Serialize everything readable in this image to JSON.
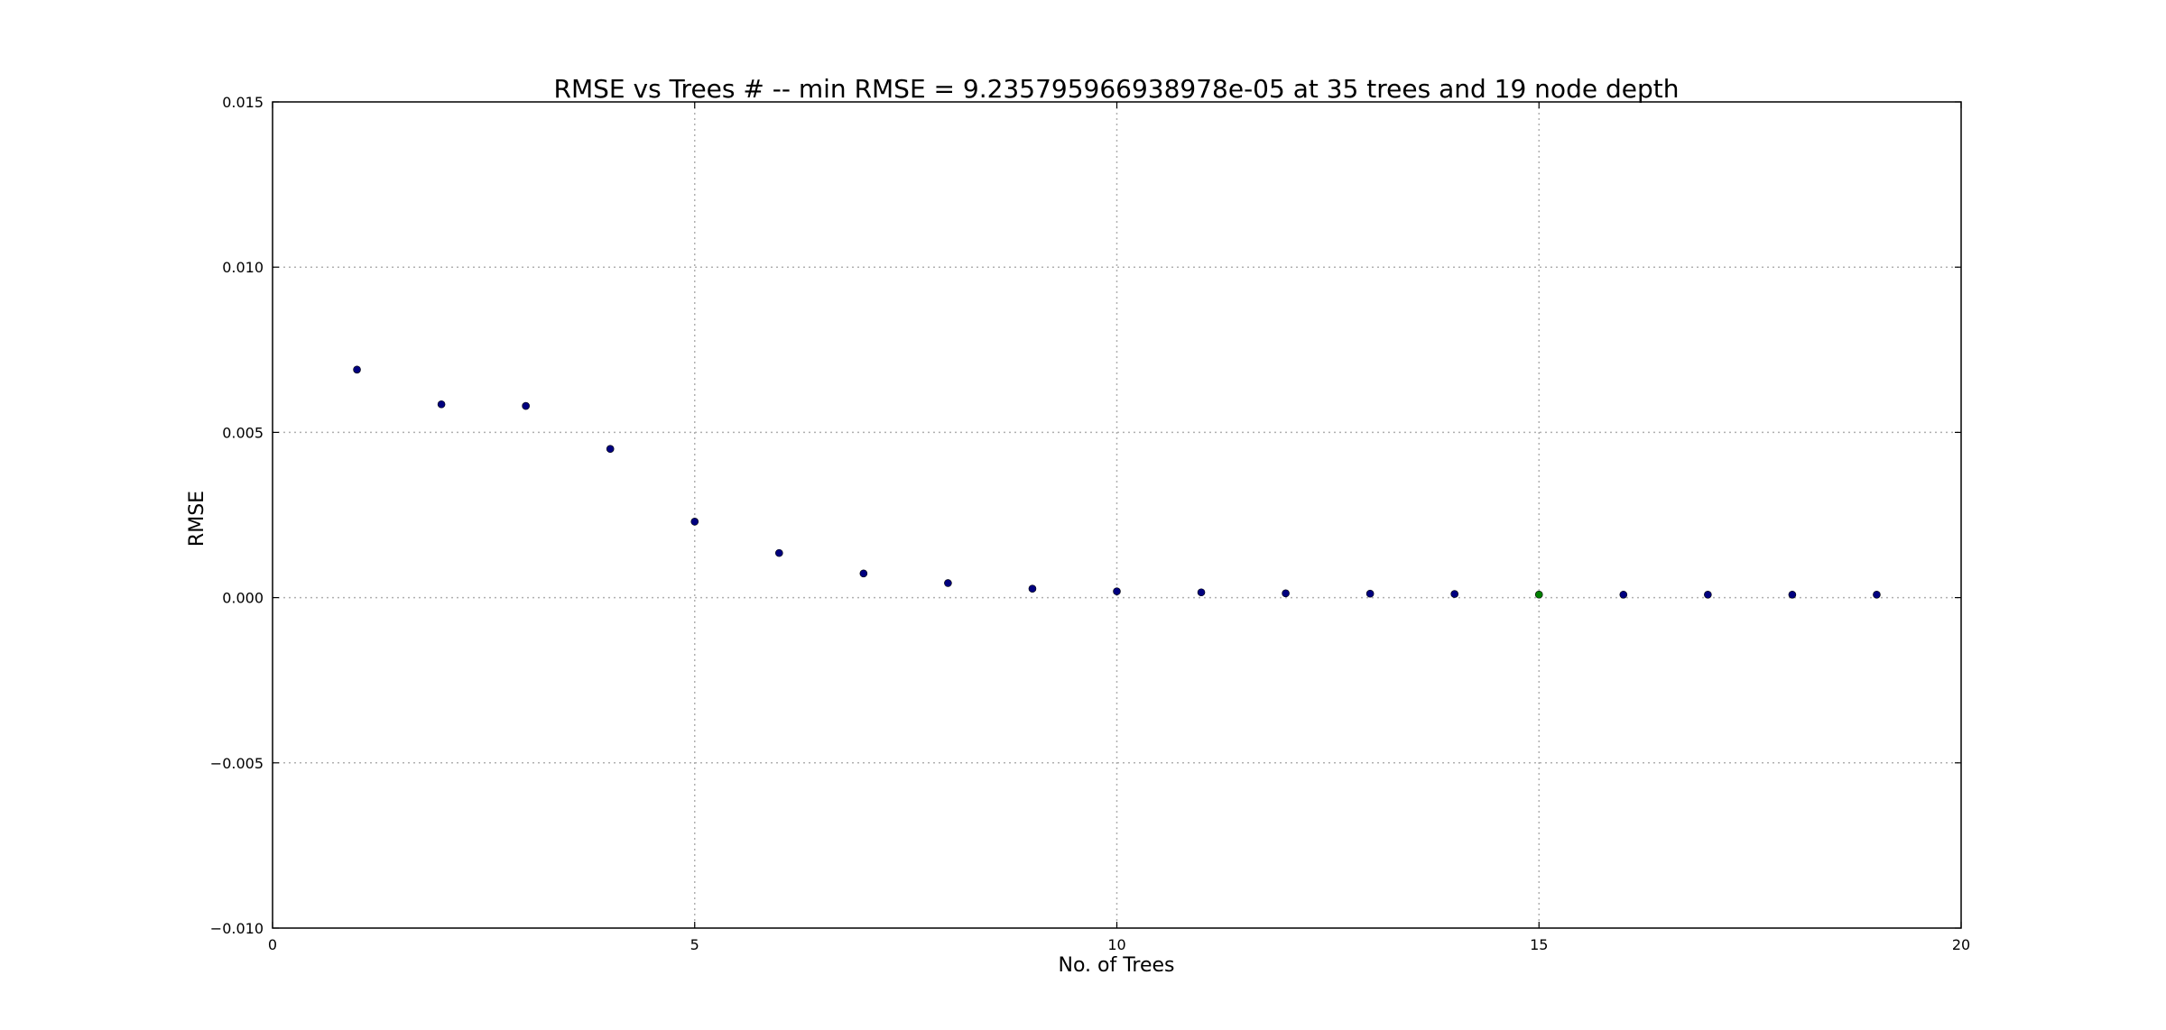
{
  "chart_data": {
    "type": "scatter",
    "title": "RMSE vs Trees # -- min RMSE = 9.235795966938978e-05 at 35 trees and 19 node depth",
    "xlabel": "No. of Trees",
    "ylabel": "RMSE",
    "xlim": [
      0,
      20
    ],
    "ylim": [
      -0.01,
      0.015
    ],
    "xticks": [
      0,
      5,
      10,
      15,
      20
    ],
    "xtick_labels": [
      "0",
      "5",
      "10",
      "15",
      "20"
    ],
    "yticks": [
      -0.01,
      -0.005,
      0.0,
      0.005,
      0.01,
      0.015
    ],
    "ytick_labels": [
      "−0.010",
      "−0.005",
      "0.000",
      "0.005",
      "0.010",
      "0.015"
    ],
    "grid": true,
    "series": [
      {
        "color": "#00007f",
        "x": [
          1,
          2,
          3,
          4,
          5,
          6,
          7,
          8,
          9,
          10,
          11,
          12,
          13,
          14,
          16,
          17,
          18,
          19
        ],
        "y": [
          0.0069,
          0.00585,
          0.0058,
          0.0045,
          0.0023,
          0.00135,
          0.00073,
          0.00044,
          0.00027,
          0.00019,
          0.00016,
          0.00013,
          0.00012,
          0.00011,
          9e-05,
          9e-05,
          9e-05,
          9e-05
        ]
      },
      {
        "color": "#008000",
        "x": [
          15
        ],
        "y": [
          9.24e-05
        ]
      }
    ]
  }
}
